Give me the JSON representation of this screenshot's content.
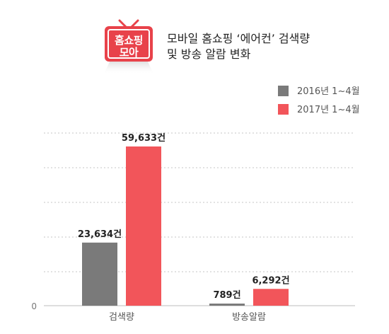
{
  "logo": {
    "line1": "홈쇼핑",
    "line2": "모아",
    "bg_color": "#e8424a"
  },
  "title_lines": [
    "모바일 홈쇼핑 ‘에어컨’ 검색량",
    "및 방송 알람 변화"
  ],
  "chart_data": {
    "type": "bar",
    "title": "모바일 홈쇼핑 ‘에어컨’ 검색량 및 방송 알람 변화",
    "categories": [
      "검색량",
      "방송알람"
    ],
    "series": [
      {
        "name": "2016년 1~4월",
        "color": "#7a7a7a",
        "values": [
          23634,
          789
        ],
        "labels": [
          "23,634건",
          "789건"
        ]
      },
      {
        "name": "2017년 1~4월",
        "color": "#f2555a",
        "values": [
          59633,
          6292
        ],
        "labels": [
          "59,633건",
          "6,292건"
        ]
      }
    ],
    "y_tick_labels": [
      "0"
    ],
    "xlabel": "",
    "ylabel": "",
    "grid": true,
    "legend_position": "top-right"
  }
}
